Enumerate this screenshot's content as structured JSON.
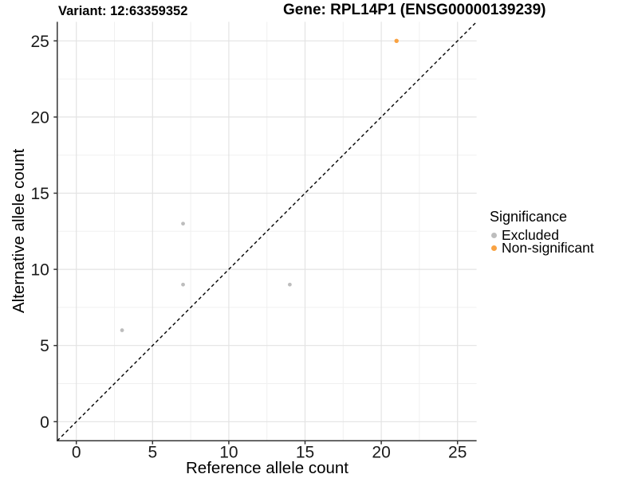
{
  "titles": {
    "variant": "Variant: 12:63359352",
    "gene": "Gene: RPL14P1 (ENSG00000139239)"
  },
  "chart_data": {
    "type": "scatter",
    "title_left": "Variant: 12:63359352",
    "title_right": "Gene: RPL14P1 (ENSG00000139239)",
    "xlabel": "Reference allele count",
    "ylabel": "Alternative allele count",
    "xlim": [
      -1.25,
      26.25
    ],
    "ylim": [
      -1.25,
      26.25
    ],
    "x_ticks": [
      0,
      5,
      10,
      15,
      20,
      25
    ],
    "y_ticks": [
      0,
      5,
      10,
      15,
      20,
      25
    ],
    "x_minor_ticks": [
      2.5,
      7.5,
      12.5,
      17.5,
      22.5
    ],
    "y_minor_ticks": [
      2.5,
      7.5,
      12.5,
      17.5,
      22.5
    ],
    "grid": "major+minor",
    "identity_line": {
      "slope": 1,
      "intercept": 0,
      "style": "dashed",
      "color": "#000000"
    },
    "series": [
      {
        "name": "Excluded",
        "color": "#BDBDBD",
        "radius": 2.4,
        "points": [
          {
            "x": 3,
            "y": 6
          },
          {
            "x": 7,
            "y": 9
          },
          {
            "x": 7,
            "y": 13
          },
          {
            "x": 14,
            "y": 9
          }
        ]
      },
      {
        "name": "Non-significant",
        "color": "#F9A242",
        "radius": 2.7,
        "points": [
          {
            "x": 21,
            "y": 25
          }
        ]
      }
    ],
    "legend": {
      "title": "Significance",
      "position": "right"
    },
    "colors": {
      "grid_major": "#E3E3E3",
      "grid_minor": "#F0F0F0",
      "axis_line": "#333333",
      "tick_text": "#1a1a1a"
    }
  }
}
